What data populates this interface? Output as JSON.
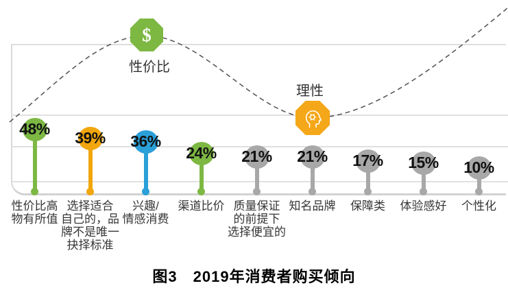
{
  "figure": {
    "caption": "图3　2019年消费者购买倾向"
  },
  "chart_data": {
    "type": "bar",
    "variant": "lollipop",
    "title": "图3　2019年消费者购买倾向",
    "categories": [
      "性价比高\n物有所值",
      "选择适合\n自己的，品\n牌不是唯一\n抉择标准",
      "兴趣/\n情感消费",
      "渠道比价",
      "质量保证\n的前提下\n选择便宜的",
      "知名品牌",
      "保障类",
      "体验感好",
      "个性化"
    ],
    "values": [
      48,
      39,
      36,
      24,
      21,
      21,
      17,
      15,
      10
    ],
    "value_labels": [
      "48%",
      "39%",
      "36%",
      "24%",
      "21%",
      "21%",
      "17%",
      "15%",
      "10%"
    ],
    "bar_colors": [
      "#7db843",
      "#f2a60d",
      "#2a9fd8",
      "#7db843",
      "#a8a8a8",
      "#a8a8a8",
      "#a8a8a8",
      "#a8a8a8",
      "#a8a8a8"
    ],
    "ylim": [
      0,
      55
    ],
    "xlabel": "",
    "ylabel": "",
    "grid": true,
    "grid_color": "#e0e0e0",
    "legend": "none",
    "trend_curve": {
      "style": "dashed",
      "color": "#595959",
      "description": "虚线波浪曲线：在“性价比”图标处达到顶峰，在“理性”图标处降至谷底，随后升向右上角"
    },
    "annotations": [
      {
        "id": "value",
        "label": "性价比",
        "symbol": "$",
        "icon": "dollar-octagon",
        "color": "#7db843",
        "position": "curve-peak"
      },
      {
        "id": "rational",
        "label": "理性",
        "icon": "thinking-head-octagon",
        "color": "#f4a718",
        "position": "curve-dip"
      }
    ]
  }
}
